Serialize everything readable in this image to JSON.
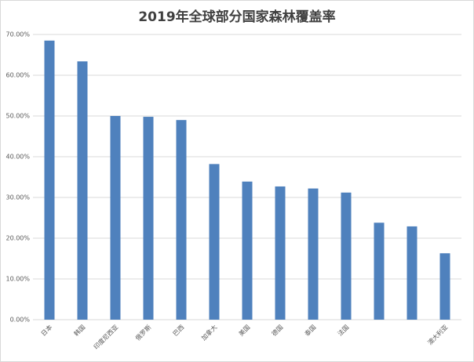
{
  "chart_data": {
    "type": "bar",
    "title": "2019年全球部分国家森林覆盖率",
    "categories": [
      "日本",
      "韩国",
      "印度尼西亚",
      "俄罗斯",
      "巴西",
      "加拿大",
      "美国",
      "德国",
      "泰国",
      "法国",
      null,
      null,
      "澳大利亚"
    ],
    "values": [
      68.5,
      63.4,
      50.0,
      49.8,
      49.0,
      38.2,
      33.9,
      32.7,
      32.2,
      31.2,
      23.8,
      22.9,
      16.3
    ],
    "color": "#4f81bd",
    "ylim": [
      0,
      70
    ],
    "yticks": [
      {
        "value": 0,
        "label": "0.00%"
      },
      {
        "value": 10,
        "label": "10.00%"
      },
      {
        "value": 20,
        "label": "20.00%"
      },
      {
        "value": 30,
        "label": "30.00%"
      },
      {
        "value": 40,
        "label": "40.00%"
      },
      {
        "value": 50,
        "label": "50.00%"
      },
      {
        "value": 60,
        "label": "60.00%"
      },
      {
        "value": 70,
        "label": "70.00%"
      }
    ],
    "grid": true
  }
}
